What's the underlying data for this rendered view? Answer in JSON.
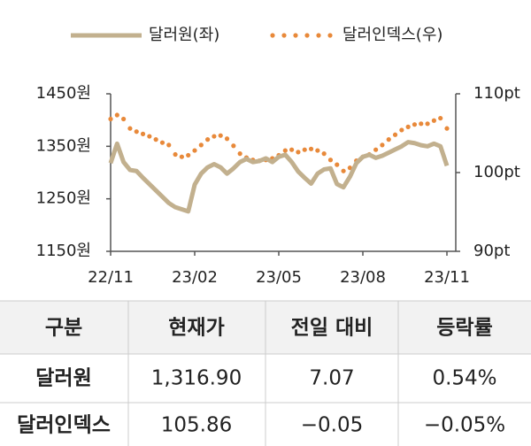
{
  "chart_data": {
    "type": "line",
    "categories": [
      "22/11",
      null,
      null,
      null,
      null,
      null,
      null,
      null,
      null,
      null,
      null,
      null,
      null,
      "23/02",
      null,
      null,
      null,
      null,
      null,
      null,
      null,
      null,
      null,
      null,
      null,
      null,
      "23/05",
      null,
      null,
      null,
      null,
      null,
      null,
      null,
      null,
      null,
      null,
      null,
      null,
      "23/08",
      null,
      null,
      null,
      null,
      null,
      null,
      null,
      null,
      null,
      null,
      null,
      null,
      "23/11"
    ],
    "series": [
      {
        "name": "달러원(좌)",
        "color": "#c2b08e",
        "axis": "y",
        "style": "solid",
        "values": [
          1318,
          1355,
          1320,
          1305,
          1303,
          1290,
          1278,
          1266,
          1254,
          1242,
          1234,
          1230,
          1226,
          1277,
          1298,
          1310,
          1316,
          1310,
          1298,
          1308,
          1320,
          1326,
          1320,
          1322,
          1327,
          1320,
          1330,
          1334,
          1320,
          1302,
          1290,
          1279,
          1298,
          1306,
          1308,
          1278,
          1272,
          1292,
          1318,
          1330,
          1334,
          1328,
          1332,
          1338,
          1344,
          1350,
          1358,
          1356,
          1352,
          1350,
          1355,
          1350,
          1313
        ]
      },
      {
        "name": "달러인덱스(우)",
        "color": "#e8893a",
        "axis": "y2",
        "style": "dotted",
        "values": [
          106.8,
          107.3,
          106.8,
          105.6,
          105.2,
          104.9,
          104.6,
          104.2,
          103.8,
          103.5,
          102.3,
          102.0,
          102.2,
          102.8,
          103.5,
          104.2,
          104.6,
          104.7,
          104.3,
          103.4,
          102.4,
          101.9,
          101.6,
          101.5,
          101.6,
          101.8,
          102.2,
          102.8,
          102.9,
          102.6,
          102.9,
          103.0,
          102.8,
          102.4,
          101.6,
          101.0,
          100.2,
          100.6,
          101.5,
          102.0,
          102.3,
          102.9,
          103.5,
          104.2,
          104.8,
          105.4,
          105.8,
          106.1,
          106.2,
          106.2,
          106.6,
          106.9,
          105.6
        ]
      }
    ],
    "ylim": [
      1150,
      1450
    ],
    "yticks": [
      {
        "value": 1150,
        "label": "1150원"
      },
      {
        "value": 1250,
        "label": "1250원"
      },
      {
        "value": 1350,
        "label": "1350원"
      },
      {
        "value": 1450,
        "label": "1450원"
      }
    ],
    "y2lim": [
      90,
      110
    ],
    "y2ticks": [
      {
        "value": 90,
        "label": "90pt"
      },
      {
        "value": 100,
        "label": "100pt"
      },
      {
        "value": 110,
        "label": "110pt"
      }
    ],
    "grid": false,
    "legend": "top"
  },
  "table": {
    "header": [
      "구분",
      "현재가",
      "전일 대비",
      "등락률"
    ],
    "rows": [
      [
        "달러원",
        "1,316.90",
        "7.07",
        "0.54%"
      ],
      [
        "달러인덱스",
        "105.86",
        "−0.05",
        "−0.05%"
      ]
    ]
  }
}
